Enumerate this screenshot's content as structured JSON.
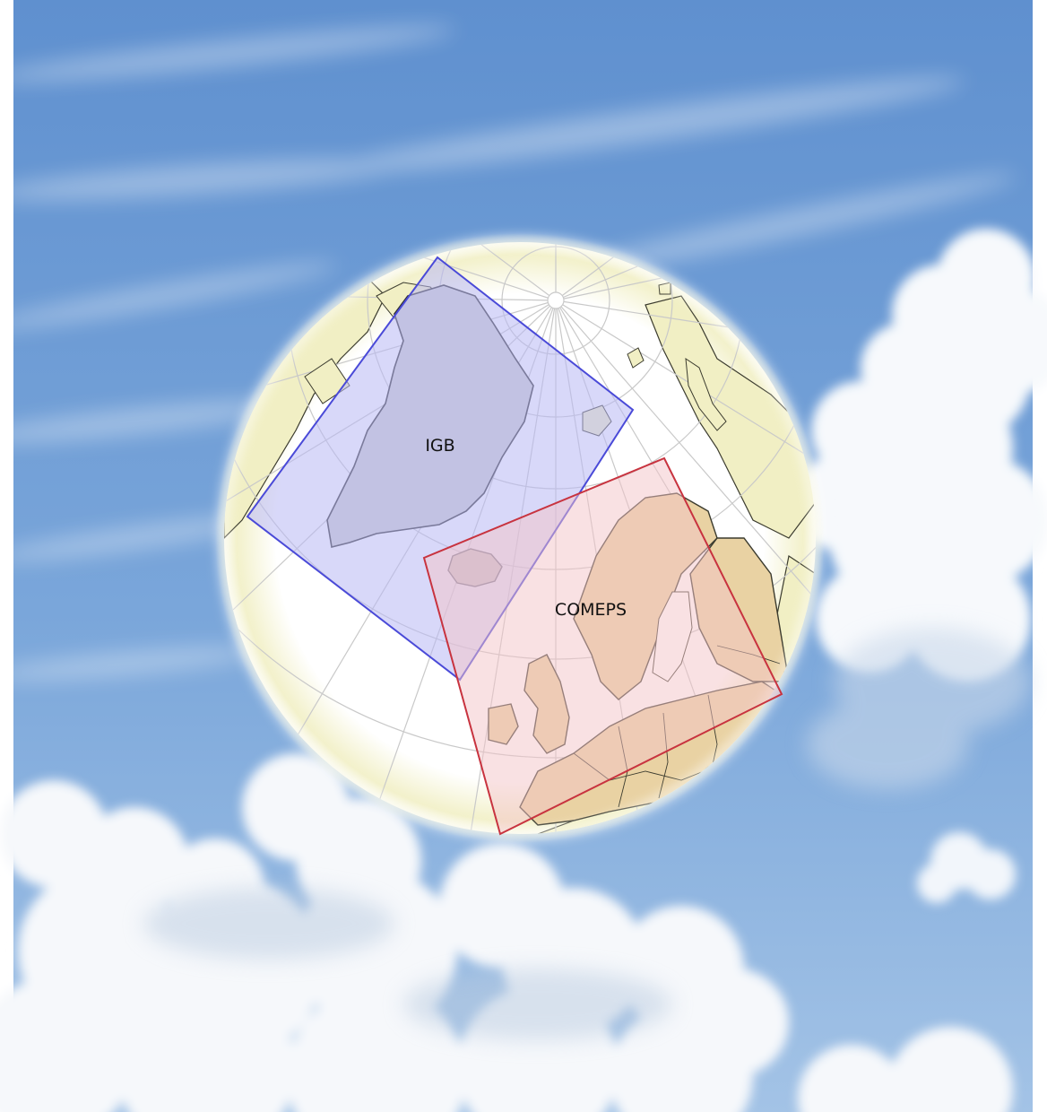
{
  "map": {
    "domains": [
      {
        "label": "IGB",
        "stroke": "#4a4ad8",
        "fill": "#b8b8f4"
      },
      {
        "label": "COMEPS",
        "stroke": "#c8333f",
        "fill": "#f4c4c8"
      }
    ],
    "colors": {
      "sky_top": "#5a8ccc",
      "sky_bottom": "#a9c7e6",
      "cloud": "#ffffff",
      "ocean": "#ffffff",
      "graticule": "#c9c9c9",
      "outer_land": "#f1efc4",
      "greenland": "#cfcfcf",
      "europe": "#e9d2a3",
      "coast": "#3b3b2e"
    }
  }
}
